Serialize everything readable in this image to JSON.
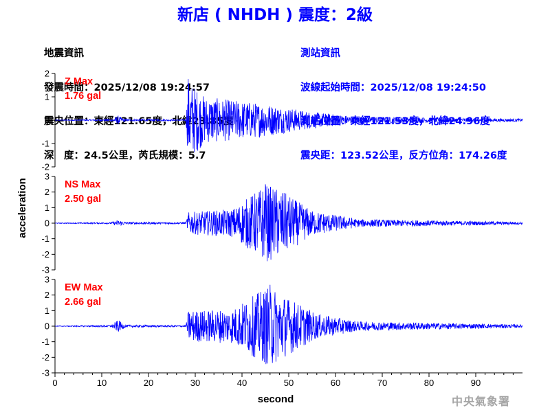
{
  "title": "新店 ( NHDH ) 震度：2級",
  "earthquake_info": {
    "heading": "地震資訊",
    "origin_time": "發震時間：2025/12/08 19:24:57",
    "epicenter": "震央位置：東經121.65度，北緯23.85度",
    "depth_magnitude": "深　度：24.5公里，芮氏規模：5.7"
  },
  "station_info": {
    "heading": "測站資訊",
    "wave_start": "波線起始時間：2025/12/08 19:24:50",
    "location": "測站位置：東經121.53度，北緯24.96度",
    "distance": "震央距：123.52公里，反方位角：174.26度"
  },
  "agency": "中央氣象署",
  "colors": {
    "trace": "#0000ff",
    "label": "#ff0000",
    "title": "#0000ff",
    "axis": "#000000"
  },
  "chart_data": {
    "type": "line",
    "xlabel": "second",
    "ylabel": "acceleration",
    "xlim": [
      0,
      100
    ],
    "x_ticks": [
      0,
      10,
      20,
      30,
      40,
      50,
      60,
      70,
      80,
      90
    ],
    "grid": false,
    "panels": [
      {
        "component": "Z",
        "label_line1": "Z Max",
        "label_line2": "1.76 gal",
        "max_gal": 1.76,
        "ylim": [
          -2,
          2
        ],
        "y_ticks": [
          -2,
          -1,
          0,
          1,
          2
        ],
        "envelope": [
          {
            "t": 0,
            "a": 0.01
          },
          {
            "t": 12,
            "a": 0.04
          },
          {
            "t": 13.5,
            "a": 0.18
          },
          {
            "t": 15,
            "a": 0.05
          },
          {
            "t": 28,
            "a": 0.03
          },
          {
            "t": 28.5,
            "a": 1.75
          },
          {
            "t": 32,
            "a": 1.0
          },
          {
            "t": 45,
            "a": 0.7
          },
          {
            "t": 55,
            "a": 0.35
          },
          {
            "t": 65,
            "a": 0.15
          },
          {
            "t": 100,
            "a": 0.06
          }
        ]
      },
      {
        "component": "NS",
        "label_line1": "NS Max",
        "label_line2": "2.50 gal",
        "max_gal": 2.5,
        "ylim": [
          -3,
          3
        ],
        "y_ticks": [
          -3,
          -2,
          -1,
          0,
          1,
          2,
          3
        ],
        "envelope": [
          {
            "t": 0,
            "a": 0.02
          },
          {
            "t": 12,
            "a": 0.05
          },
          {
            "t": 13.5,
            "a": 0.2
          },
          {
            "t": 15,
            "a": 0.08
          },
          {
            "t": 28,
            "a": 0.05
          },
          {
            "t": 28.5,
            "a": 0.7
          },
          {
            "t": 38,
            "a": 0.9
          },
          {
            "t": 45,
            "a": 2.5
          },
          {
            "t": 48,
            "a": 2.2
          },
          {
            "t": 55,
            "a": 0.8
          },
          {
            "t": 65,
            "a": 0.25
          },
          {
            "t": 100,
            "a": 0.08
          }
        ]
      },
      {
        "component": "EW",
        "label_line1": "EW Max",
        "label_line2": "2.66 gal",
        "max_gal": 2.66,
        "ylim": [
          -3,
          3
        ],
        "y_ticks": [
          -3,
          -2,
          -1,
          0,
          1,
          2,
          3
        ],
        "envelope": [
          {
            "t": 0,
            "a": 0.02
          },
          {
            "t": 12,
            "a": 0.06
          },
          {
            "t": 13.5,
            "a": 0.4
          },
          {
            "t": 15,
            "a": 0.08
          },
          {
            "t": 28,
            "a": 0.05
          },
          {
            "t": 28.5,
            "a": 1.0
          },
          {
            "t": 38,
            "a": 1.1
          },
          {
            "t": 46,
            "a": 2.66
          },
          {
            "t": 49,
            "a": 2.0
          },
          {
            "t": 56,
            "a": 0.8
          },
          {
            "t": 65,
            "a": 0.3
          },
          {
            "t": 100,
            "a": 0.1
          }
        ]
      }
    ]
  }
}
